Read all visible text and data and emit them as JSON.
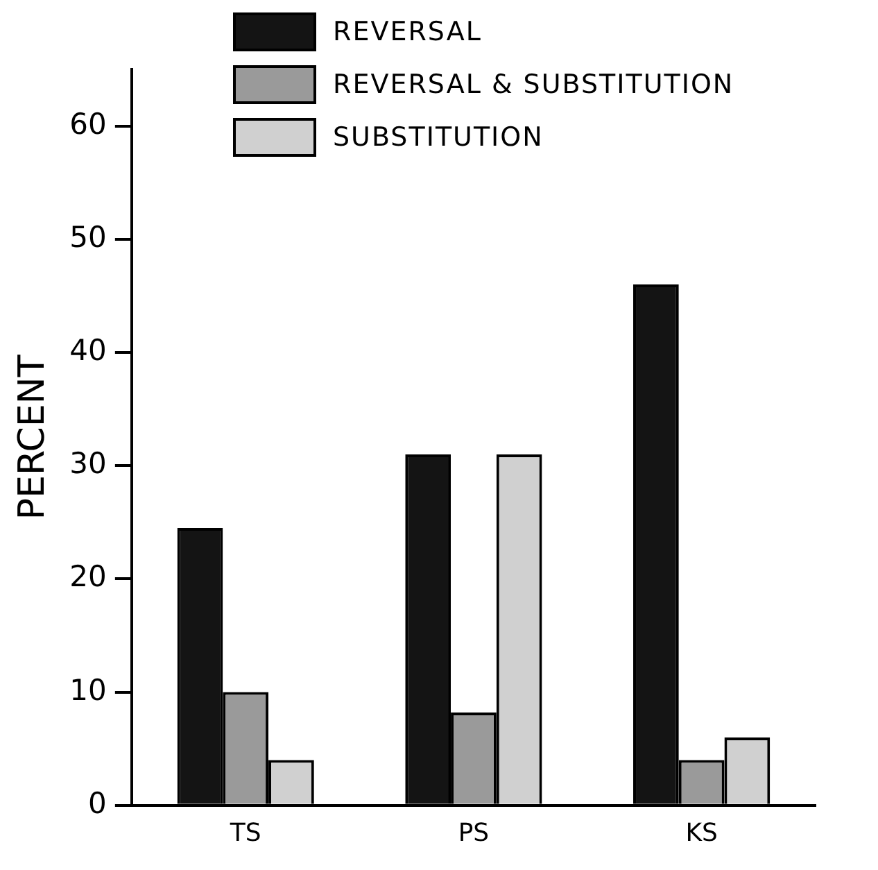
{
  "chart_data": {
    "type": "bar",
    "ylabel": "PERCENT",
    "categories": [
      "TS",
      "PS",
      "KS"
    ],
    "series": [
      {
        "name": "REVERSAL",
        "color": "#141414",
        "values": [
          24.5,
          31,
          46
        ]
      },
      {
        "name": "REVERSAL & SUBSTITUTION",
        "color": "#9a9a9a",
        "values": [
          10,
          8.2,
          4
        ]
      },
      {
        "name": "SUBSTITUTION",
        "color": "#d0d0d0",
        "values": [
          4,
          31,
          6
        ]
      }
    ],
    "ylim": [
      0,
      65
    ],
    "yticks": [
      0,
      10,
      20,
      30,
      40,
      50,
      60
    ],
    "grid": false,
    "legend": "top left"
  }
}
